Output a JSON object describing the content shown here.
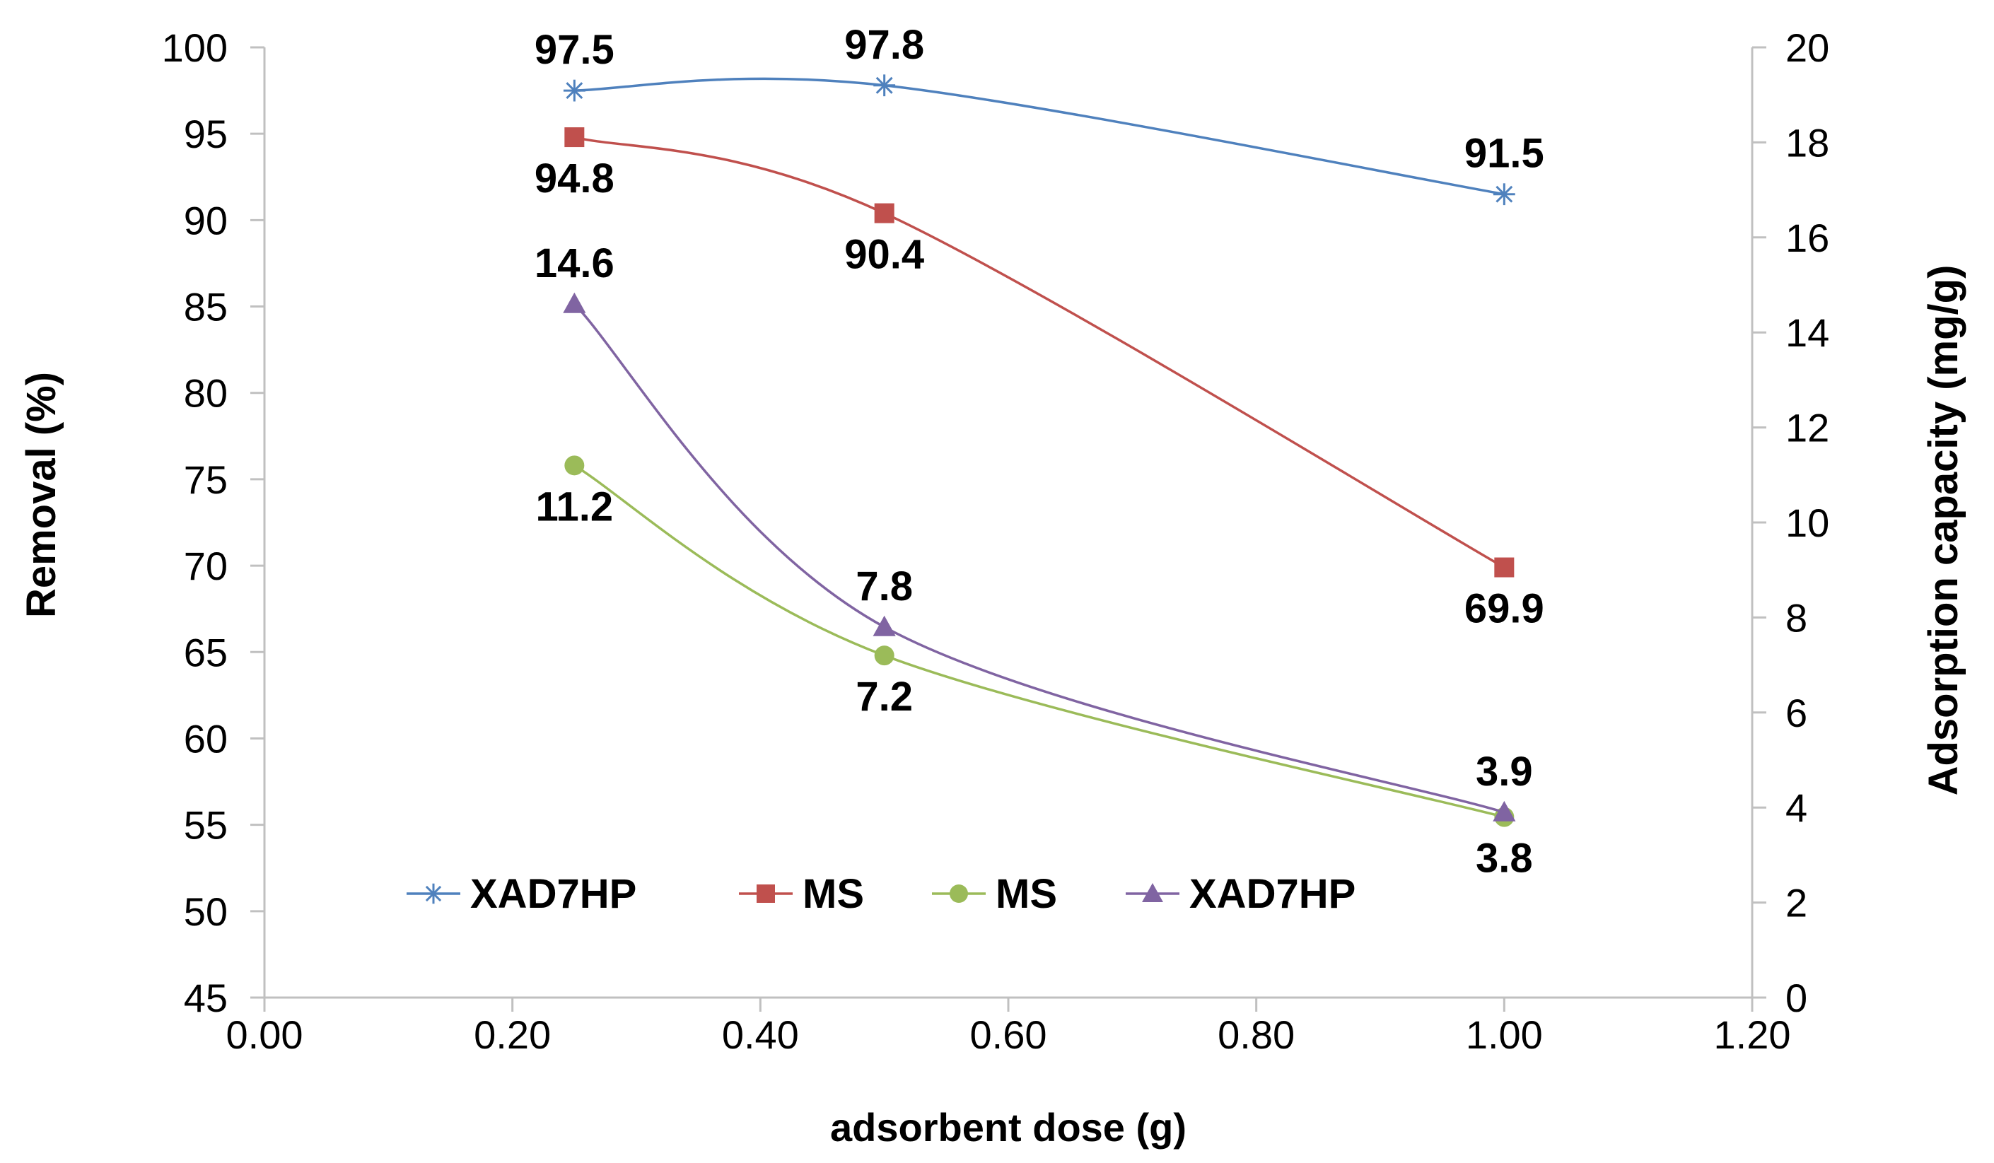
{
  "chart_data": {
    "type": "line",
    "title": "",
    "xlabel": "adsorbent dose (g)",
    "ylabel_left": "Removal (%)",
    "ylabel_right": "Adsorption capacity (mg/g)",
    "xlim": [
      0,
      1.2
    ],
    "xticks": [
      0,
      0.2,
      0.4,
      0.6,
      0.8,
      1.0,
      1.2
    ],
    "xtick_labels": [
      "0.00",
      "0.20",
      "0.40",
      "0.60",
      "0.80",
      "1.00",
      "1.20"
    ],
    "ylim_left": [
      45,
      100
    ],
    "yticks_left": [
      45,
      50,
      55,
      60,
      65,
      70,
      75,
      80,
      85,
      90,
      95,
      100
    ],
    "ylim_right": [
      0,
      20
    ],
    "yticks_right": [
      0,
      2,
      4,
      6,
      8,
      10,
      12,
      14,
      16,
      18,
      20
    ],
    "grid": false,
    "legend_position": "bottom-center",
    "series": [
      {
        "name": "XAD7HP",
        "axis": "left",
        "color": "#4f81bd",
        "marker": "asterisk",
        "x": [
          0.25,
          0.5,
          1.0
        ],
        "y": [
          97.5,
          97.8,
          91.5
        ],
        "labels": [
          "97.5",
          "97.8",
          "91.5"
        ],
        "label_position": "above"
      },
      {
        "name": "MS",
        "axis": "left",
        "color": "#c0504d",
        "marker": "square",
        "x": [
          0.25,
          0.5,
          1.0
        ],
        "y": [
          94.8,
          90.4,
          69.9
        ],
        "labels": [
          "94.8",
          "90.4",
          "69.9"
        ],
        "label_position": "below"
      },
      {
        "name": "MS",
        "axis": "right",
        "color": "#9bbb59",
        "marker": "circle",
        "x": [
          0.25,
          0.5,
          1.0
        ],
        "y": [
          11.2,
          7.2,
          3.8
        ],
        "labels": [
          "11.2",
          "7.2",
          "3.8"
        ],
        "label_position": "below"
      },
      {
        "name": "XAD7HP",
        "axis": "right",
        "color": "#8064a2",
        "marker": "triangle",
        "x": [
          0.25,
          0.5,
          1.0
        ],
        "y": [
          14.6,
          7.8,
          3.9
        ],
        "labels": [
          "14.6",
          "7.8",
          "3.9"
        ],
        "label_position": "above"
      }
    ]
  }
}
